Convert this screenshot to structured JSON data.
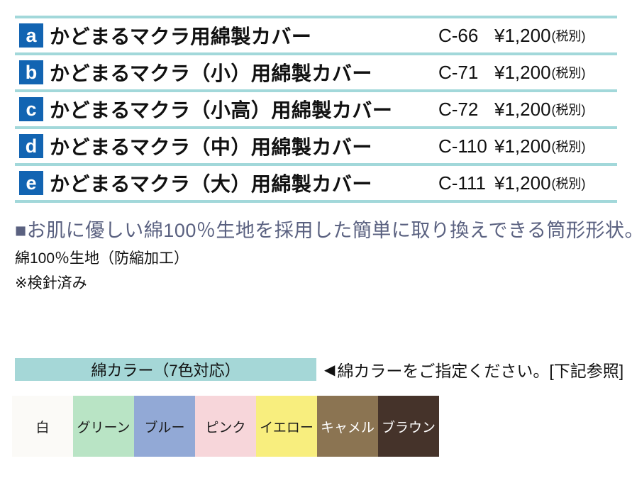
{
  "theme": {
    "line_teal": "#a2d8da",
    "badge_blue": "#1264b2",
    "bar_teal": "#a5d7d7",
    "heading_slate": "#5a6180"
  },
  "table": {
    "rows": [
      {
        "badge": "a",
        "name": "かどまるマクラ用綿製カバー",
        "code": "C-66",
        "price": "¥1,200",
        "tax_note": "(税別)"
      },
      {
        "badge": "b",
        "name": "かどまるマクラ（小）用綿製カバー",
        "code": "C-71",
        "price": "¥1,200",
        "tax_note": "(税別)"
      },
      {
        "badge": "c",
        "name": "かどまるマクラ（小高）用綿製カバー",
        "code": "C-72",
        "price": "¥1,200",
        "tax_note": "(税別)"
      },
      {
        "badge": "d",
        "name": "かどまるマクラ（中）用綿製カバー",
        "code": "C-110",
        "price": "¥1,200",
        "tax_note": "(税別)"
      },
      {
        "badge": "e",
        "name": "かどまるマクラ（大）用綿製カバー",
        "code": "C-111",
        "price": "¥1,200",
        "tax_note": "(税別)"
      }
    ]
  },
  "description": {
    "heading": "■お肌に優しい綿100％生地を採用した簡単に取り換えできる筒形形状。",
    "line1": "綿100％生地（防縮加工）",
    "line2": "※検針済み"
  },
  "colors": {
    "header": "綿カラー（7色対応）",
    "pointer_icon": "◀",
    "instruction": "綿カラーをご指定ください。[下記参照]",
    "swatches": [
      {
        "label": "白",
        "hex": "#fbfaf7",
        "text_hex": "#1a1a1a"
      },
      {
        "label": "グリーン",
        "hex": "#b9e4c5",
        "text_hex": "#1a1a1a"
      },
      {
        "label": "ブルー",
        "hex": "#92a9d6",
        "text_hex": "#1a1a1a"
      },
      {
        "label": "ピンク",
        "hex": "#f7d6da",
        "text_hex": "#1a1a1a"
      },
      {
        "label": "イエロー",
        "hex": "#f8ee7e",
        "text_hex": "#1a1a1a"
      },
      {
        "label": "キャメル",
        "hex": "#8b7452",
        "text_hex": "#ffffff"
      },
      {
        "label": "ブラウン",
        "hex": "#45332a",
        "text_hex": "#ffffff"
      }
    ]
  }
}
